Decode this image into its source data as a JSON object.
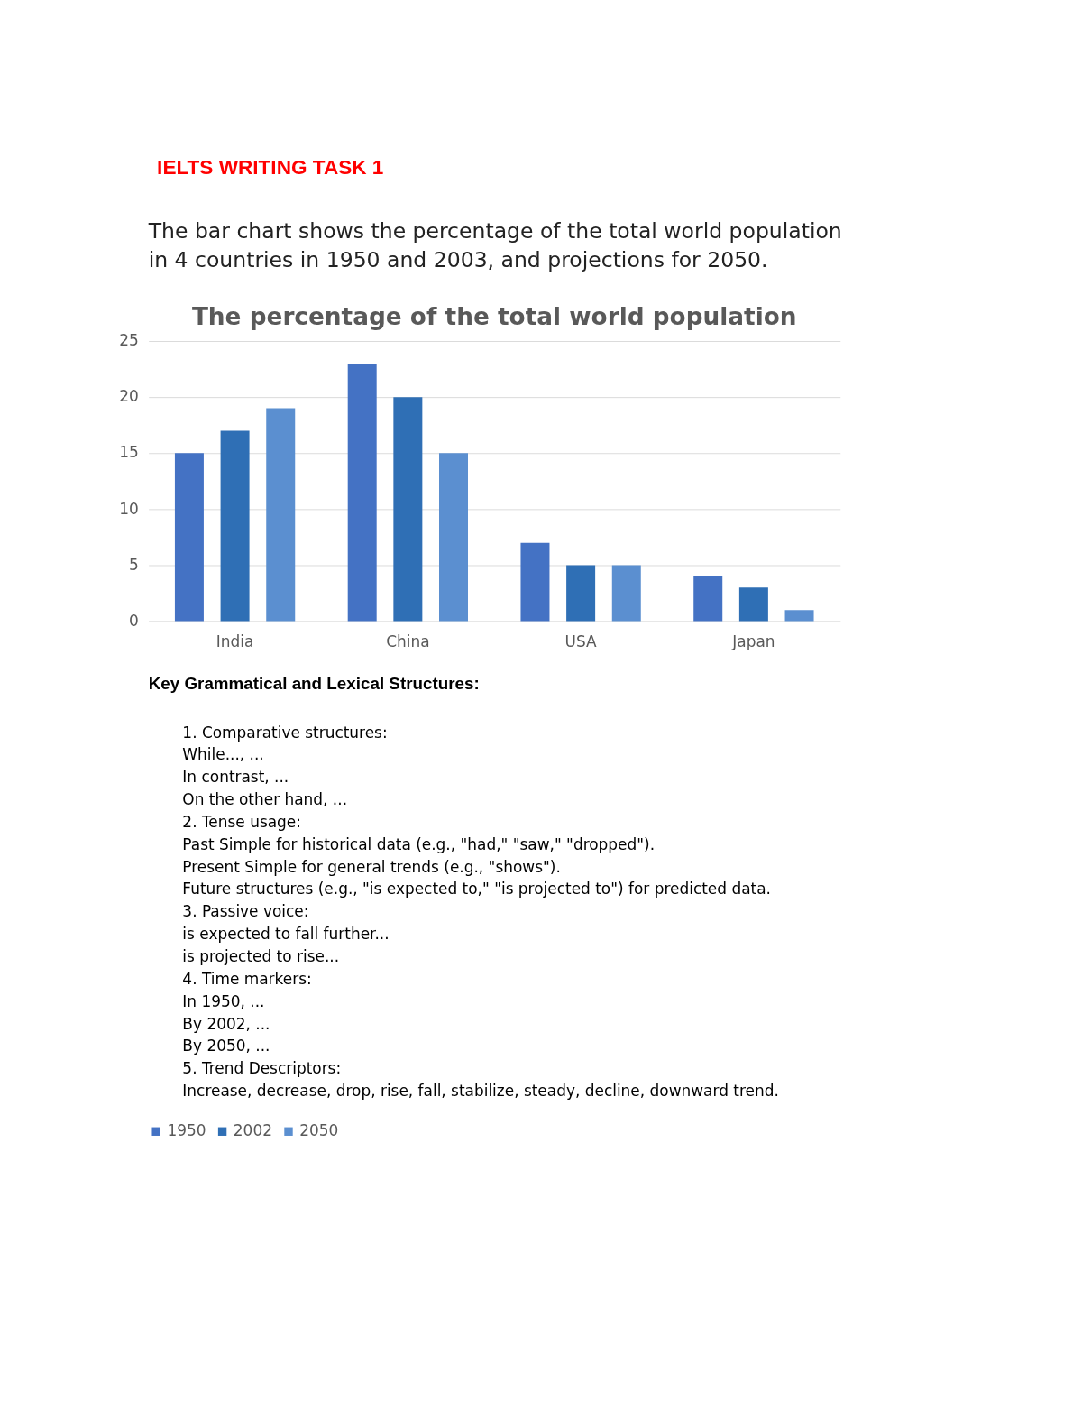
{
  "chart_data": {
    "type": "bar",
    "title": "The percentage of the total world population",
    "categories": [
      "India",
      "China",
      "USA",
      "Japan"
    ],
    "series": [
      {
        "name": "1950",
        "color": "#4472c4",
        "values": [
          15,
          23,
          7,
          4
        ]
      },
      {
        "name": "2002",
        "color": "#2f6fb5",
        "values": [
          17,
          20,
          5,
          3
        ]
      },
      {
        "name": "2050",
        "color": "#5b8fd0",
        "values": [
          19,
          15,
          5,
          1
        ]
      }
    ],
    "ylim": [
      0,
      25
    ],
    "yticks": [
      0,
      5,
      10,
      15,
      20,
      25
    ],
    "grid": "y",
    "legend": "bottom",
    "annotations": [
      "IELTS WRITING TASK 1",
      "The bar chart shows the percentage of the total world population",
      "in 4 countries in 1950 and 2003, and projections for 2050.",
      "Key Grammatical and Lexical Structures:",
      "1.  Comparative structures:",
      "While..., ...",
      "In contrast, ...",
      "On the other hand, ...",
      "2.  Tense usage:",
      "Past Simple for historical data (e.g., \"had,\" \"saw,\" \"dropped\").",
      "Present Simple for general trends (e.g., \"shows\").",
      "Future structures (e.g., \"is expected to,\" \"is projected to\") for predicted data.",
      "3.  Passive voice:",
      "is expected to fall further...",
      "is projected to rise...",
      "4.  Time markers:",
      "In 1950, ...",
      "By 2002, ...",
      "By 2050, ...",
      "5.  Trend Descriptors:",
      "Increase, decrease, drop, rise, fall, stabilize, steady, decline, downward trend."
    ]
  }
}
